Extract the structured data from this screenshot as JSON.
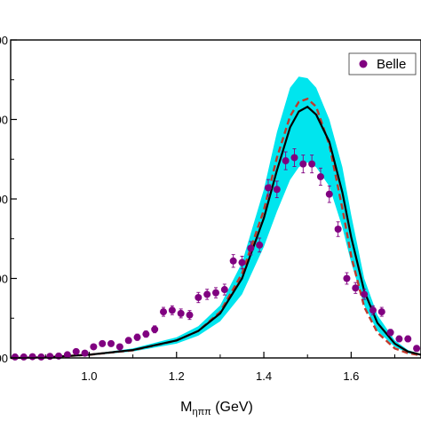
{
  "chart_data": {
    "type": "scatter",
    "title": "",
    "xlabel": {
      "main": "M",
      "sub": "ηππ",
      "unit": " (GeV)"
    },
    "ylabel": "",
    "xlim": [
      0.82,
      1.76
    ],
    "ylim": [
      0,
      100
    ],
    "x_ticks": [
      1.0,
      1.2,
      1.4,
      1.6
    ],
    "x_tick_labels": [
      "1.0",
      "1.2",
      "1.4",
      "1.6"
    ],
    "y_ticks": [
      0,
      25,
      50,
      75,
      100
    ],
    "y_tick_labels": [
      "00",
      "00",
      "00",
      "00",
      "00"
    ],
    "grid": false,
    "legend": {
      "position": "top-right",
      "entries": [
        "Belle"
      ]
    },
    "colors": {
      "data": "#800080",
      "band": "#00e5ee",
      "solid": "#000000",
      "dashed": "#c0392b"
    },
    "series": [
      {
        "name": "Belle",
        "kind": "points",
        "points": [
          {
            "x": 0.83,
            "y": 0.3,
            "err": 0.3
          },
          {
            "x": 0.85,
            "y": 0.3,
            "err": 0.3
          },
          {
            "x": 0.87,
            "y": 0.4,
            "err": 0.3
          },
          {
            "x": 0.89,
            "y": 0.3,
            "err": 0.3
          },
          {
            "x": 0.91,
            "y": 0.5,
            "err": 0.3
          },
          {
            "x": 0.93,
            "y": 0.6,
            "err": 0.3
          },
          {
            "x": 0.95,
            "y": 1.0,
            "err": 0.5
          },
          {
            "x": 0.97,
            "y": 2.0,
            "err": 0.6
          },
          {
            "x": 0.99,
            "y": 1.5,
            "err": 0.5
          },
          {
            "x": 1.01,
            "y": 3.5,
            "err": 0.8
          },
          {
            "x": 1.03,
            "y": 4.5,
            "err": 0.8
          },
          {
            "x": 1.05,
            "y": 4.5,
            "err": 0.8
          },
          {
            "x": 1.07,
            "y": 3.5,
            "err": 0.8
          },
          {
            "x": 1.09,
            "y": 5.5,
            "err": 0.9
          },
          {
            "x": 1.11,
            "y": 6.5,
            "err": 1.0
          },
          {
            "x": 1.13,
            "y": 7.5,
            "err": 1.0
          },
          {
            "x": 1.15,
            "y": 9.0,
            "err": 1.1
          },
          {
            "x": 1.17,
            "y": 14.5,
            "err": 1.4
          },
          {
            "x": 1.19,
            "y": 15.0,
            "err": 1.4
          },
          {
            "x": 1.21,
            "y": 14.0,
            "err": 1.4
          },
          {
            "x": 1.23,
            "y": 13.5,
            "err": 1.4
          },
          {
            "x": 1.25,
            "y": 19.0,
            "err": 1.6
          },
          {
            "x": 1.27,
            "y": 20.0,
            "err": 1.6
          },
          {
            "x": 1.29,
            "y": 20.5,
            "err": 1.6
          },
          {
            "x": 1.31,
            "y": 21.5,
            "err": 1.7
          },
          {
            "x": 1.33,
            "y": 30.5,
            "err": 2.0
          },
          {
            "x": 1.35,
            "y": 30.0,
            "err": 2.0
          },
          {
            "x": 1.37,
            "y": 34.5,
            "err": 2.1
          },
          {
            "x": 1.39,
            "y": 35.5,
            "err": 2.2
          },
          {
            "x": 1.41,
            "y": 53.5,
            "err": 2.6
          },
          {
            "x": 1.43,
            "y": 53.0,
            "err": 2.6
          },
          {
            "x": 1.45,
            "y": 62.0,
            "err": 2.8
          },
          {
            "x": 1.47,
            "y": 63.0,
            "err": 2.8
          },
          {
            "x": 1.49,
            "y": 61.0,
            "err": 2.8
          },
          {
            "x": 1.51,
            "y": 61.0,
            "err": 2.8
          },
          {
            "x": 1.53,
            "y": 57.0,
            "err": 2.7
          },
          {
            "x": 1.55,
            "y": 51.5,
            "err": 2.6
          },
          {
            "x": 1.57,
            "y": 40.5,
            "err": 2.3
          },
          {
            "x": 1.59,
            "y": 25.0,
            "err": 1.8
          },
          {
            "x": 1.61,
            "y": 22.0,
            "err": 1.7
          },
          {
            "x": 1.63,
            "y": 20.0,
            "err": 1.6
          },
          {
            "x": 1.65,
            "y": 15.0,
            "err": 1.4
          },
          {
            "x": 1.67,
            "y": 14.5,
            "err": 1.4
          },
          {
            "x": 1.69,
            "y": 8.0,
            "err": 1.0
          },
          {
            "x": 1.71,
            "y": 6.0,
            "err": 0.9
          },
          {
            "x": 1.73,
            "y": 6.0,
            "err": 0.9
          },
          {
            "x": 1.75,
            "y": 3.0,
            "err": 0.7
          }
        ]
      },
      {
        "kind": "solid-curve",
        "x": [
          0.82,
          0.9,
          1.0,
          1.1,
          1.2,
          1.25,
          1.3,
          1.35,
          1.4,
          1.43,
          1.46,
          1.48,
          1.5,
          1.52,
          1.55,
          1.58,
          1.6,
          1.63,
          1.66,
          1.7,
          1.73,
          1.76
        ],
        "y": [
          0.0,
          0.2,
          1.0,
          2.5,
          5.5,
          8.5,
          14.0,
          25.0,
          44.0,
          59.0,
          72.5,
          77.5,
          79.0,
          76.5,
          68.0,
          52.0,
          38.0,
          21.0,
          11.0,
          4.5,
          2.0,
          1.0
        ]
      },
      {
        "kind": "dashed-curve",
        "x": [
          0.82,
          0.9,
          1.0,
          1.1,
          1.2,
          1.25,
          1.3,
          1.35,
          1.4,
          1.43,
          1.46,
          1.48,
          1.5,
          1.52,
          1.55,
          1.58,
          1.6,
          1.63,
          1.66,
          1.7,
          1.73,
          1.76
        ],
        "y": [
          0.0,
          0.2,
          1.0,
          2.4,
          5.5,
          8.5,
          14.5,
          26.5,
          46.5,
          63.0,
          76.0,
          80.5,
          81.5,
          79.0,
          67.0,
          47.0,
          32.0,
          16.0,
          8.0,
          3.0,
          1.5,
          0.8
        ]
      },
      {
        "kind": "band",
        "x": [
          0.82,
          0.9,
          1.0,
          1.1,
          1.2,
          1.25,
          1.3,
          1.35,
          1.4,
          1.43,
          1.46,
          1.48,
          1.5,
          1.52,
          1.55,
          1.58,
          1.6,
          1.63,
          1.66,
          1.7,
          1.73,
          1.76
        ],
        "lower": [
          0.0,
          0.2,
          0.8,
          2.0,
          4.5,
          7.0,
          11.5,
          20.0,
          35.0,
          46.0,
          56.0,
          60.0,
          61.5,
          60.0,
          54.0,
          41.0,
          30.0,
          16.5,
          8.5,
          3.5,
          1.5,
          0.8
        ],
        "upper": [
          0.0,
          0.3,
          1.2,
          3.0,
          6.5,
          10.0,
          16.5,
          30.0,
          53.0,
          71.0,
          85.0,
          88.5,
          88.0,
          85.0,
          75.0,
          60.0,
          45.0,
          25.0,
          13.5,
          5.5,
          2.5,
          1.2
        ]
      }
    ]
  }
}
